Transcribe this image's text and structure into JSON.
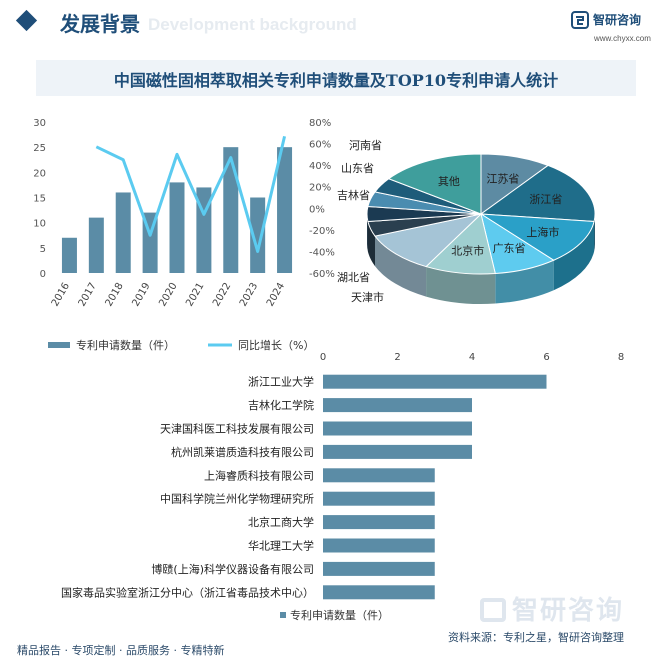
{
  "header": {
    "title": "发展背景",
    "ghost_text": "Development background"
  },
  "brand": {
    "name": "智研咨询",
    "url": "www.chyxx.com"
  },
  "main_title": "中国磁性固相萃取相关专利申请数量及TOP10专利申请人统计",
  "chart_data": [
    {
      "type": "bar+line",
      "categories": [
        "2016",
        "2017",
        "2018",
        "2019",
        "2020",
        "2021",
        "2022",
        "2023",
        "2024"
      ],
      "series": [
        {
          "name": "专利申请数量（件）",
          "type": "bar",
          "axis": "left",
          "values": [
            7,
            11,
            16,
            12,
            18,
            17,
            25,
            15,
            25
          ]
        },
        {
          "name": "同比增长（%）",
          "type": "line",
          "axis": "right",
          "values": [
            null,
            57,
            45,
            -25,
            50,
            -5.6,
            47,
            -40,
            66.7
          ]
        }
      ],
      "left_axis": {
        "ylim": [
          0,
          30
        ],
        "ticks": [
          "0",
          "5",
          "10",
          "15",
          "20",
          "25",
          "30"
        ]
      },
      "right_axis": {
        "ylim": [
          -60,
          80
        ],
        "ticks": [
          "-60%",
          "-40%",
          "-20%",
          "0%",
          "20%",
          "40%",
          "60%",
          "80%"
        ]
      },
      "colors": {
        "bar": "#5b8ca6",
        "line": "#5bcbf0"
      }
    },
    {
      "type": "pie",
      "style": "3d",
      "slices": [
        {
          "label": "江苏省",
          "value": 10,
          "color": "#5d8ba3"
        },
        {
          "label": "浙江省",
          "value": 17,
          "color": "#1f6d8a"
        },
        {
          "label": "上海市",
          "value": 12,
          "color": "#2aa0c8"
        },
        {
          "label": "广东省",
          "value": 9,
          "color": "#5ecbef"
        },
        {
          "label": "北京市",
          "value": 10,
          "color": "#9fcfd0"
        },
        {
          "label": "天津市",
          "value": 11,
          "color": "#a5c4d6"
        },
        {
          "label": "湖北省",
          "value": 4,
          "color": "#2a3f4f"
        },
        {
          "label": "吉林省",
          "value": 4,
          "color": "#1b3a52"
        },
        {
          "label": "山东省",
          "value": 4,
          "color": "#4a8cb0"
        },
        {
          "label": "河南省",
          "value": 4,
          "color": "#1e5c7a"
        },
        {
          "label": "其他",
          "value": 15,
          "color": "#3f9e9c"
        }
      ]
    },
    {
      "type": "bar",
      "orientation": "horizontal",
      "series_name": "专利申请数量（件）",
      "xlim": [
        0,
        8
      ],
      "xticks": [
        "0",
        "2",
        "4",
        "6",
        "8"
      ],
      "color": "#5b8ca6",
      "categories": [
        "浙江工业大学",
        "吉林化工学院",
        "天津国科医工科技发展有限公司",
        "杭州凯莱谱质造科技有限公司",
        "上海睿质科技有限公司",
        "中国科学院兰州化学物理研究所",
        "北京工商大学",
        "华北理工大学",
        "博赜(上海)科学仪器设备有限公司",
        "国家毒品实验室浙江分中心（浙江省毒品技术中心）"
      ],
      "values": [
        6,
        4,
        4,
        4,
        3,
        3,
        3,
        3,
        3,
        3
      ]
    }
  ],
  "legend": {
    "bar_label": "专利申请数量（件）",
    "line_label": "同比增长（%）",
    "hbar_label": "专利申请数量（件）"
  },
  "footer": {
    "left": "精品报告 · 专项定制 · 品质服务 · 专精特新",
    "right": "资料来源：专利之星，智研咨询整理"
  },
  "watermark": "智研咨询"
}
